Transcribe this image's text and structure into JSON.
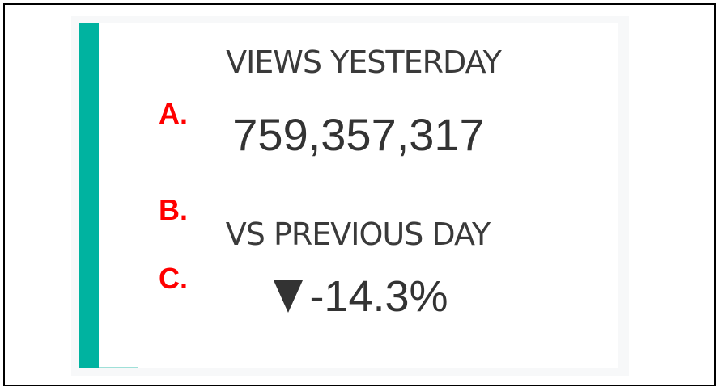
{
  "card": {
    "accent_color": "#00b3a0",
    "views_label": "VIEWS YESTERDAY",
    "views_value": "759,357,317",
    "comparison_label": "VS PREVIOUS DAY",
    "change_direction_icon": "down-triangle-icon",
    "change_value": "-14.3%"
  },
  "annotations": {
    "a": "A.",
    "b": "B.",
    "c": "C.",
    "color": "#ff0000"
  }
}
